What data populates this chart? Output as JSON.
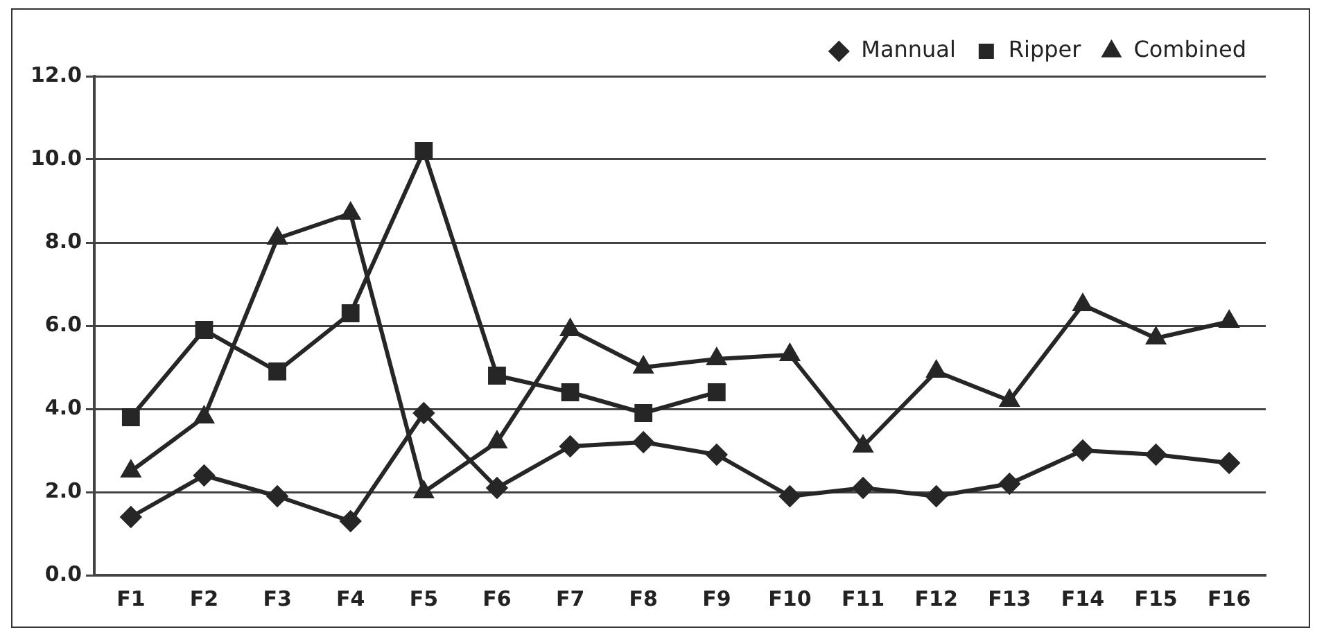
{
  "chart_data": {
    "type": "line",
    "categories": [
      "F1",
      "F2",
      "F3",
      "F4",
      "F5",
      "F6",
      "F7",
      "F8",
      "F9",
      "F10",
      "F11",
      "F12",
      "F13",
      "F14",
      "F15",
      "F16"
    ],
    "series": [
      {
        "name": "Mannual",
        "color": "#262626",
        "marker": "diamond",
        "values": [
          1.4,
          2.4,
          1.9,
          1.3,
          3.9,
          2.1,
          3.1,
          3.2,
          2.9,
          1.9,
          2.1,
          1.9,
          2.2,
          3.0,
          2.9,
          2.7
        ]
      },
      {
        "name": "Ripper",
        "color": "#262626",
        "marker": "square",
        "values": [
          3.8,
          5.9,
          4.9,
          6.3,
          10.2,
          4.8,
          4.4,
          3.9,
          4.4,
          null,
          null,
          null,
          null,
          null,
          null,
          null
        ]
      },
      {
        "name": "Combined",
        "color": "#262626",
        "marker": "triangle",
        "values": [
          2.5,
          3.8,
          8.1,
          8.7,
          2.0,
          3.2,
          5.9,
          5.0,
          5.2,
          5.3,
          3.1,
          4.9,
          4.2,
          6.5,
          5.7,
          6.1
        ]
      }
    ],
    "ylim": [
      0,
      12
    ],
    "yticks": [
      {
        "value": 0,
        "label": "0.0"
      },
      {
        "value": 2,
        "label": "2.0"
      },
      {
        "value": 4,
        "label": "4.0"
      },
      {
        "value": 6,
        "label": "6.0"
      },
      {
        "value": 8,
        "label": "8.0"
      },
      {
        "value": 10,
        "label": "10.0"
      },
      {
        "value": 12,
        "label": "12.0"
      }
    ],
    "grid": "y",
    "legend": "top right"
  }
}
